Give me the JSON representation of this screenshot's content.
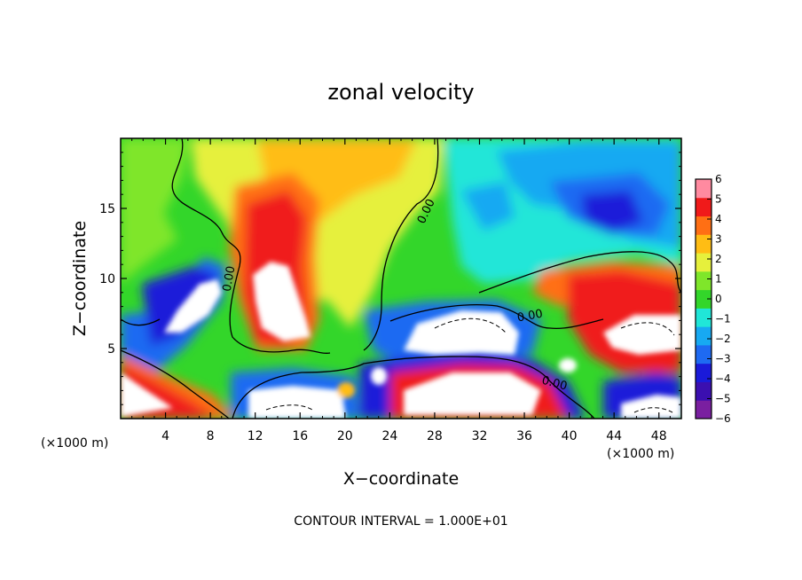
{
  "chart_data": {
    "type": "heatmap",
    "title": "zonal velocity",
    "xlabel": "X−coordinate",
    "ylabel": "Z−coordinate",
    "x_unit_left": "(×1000 m)",
    "x_unit_right": "(×1000 m)",
    "xlim": [
      0,
      50
    ],
    "ylim": [
      0,
      20
    ],
    "x_ticks": [
      4,
      8,
      12,
      16,
      20,
      24,
      28,
      32,
      36,
      40,
      44,
      48
    ],
    "y_ticks": [
      5,
      10,
      15
    ],
    "colorbar": {
      "min": -6,
      "max": 6,
      "ticks": [
        "6",
        "5",
        "4",
        "3",
        "2",
        "1",
        "0",
        "−1",
        "−2",
        "−3",
        "−4",
        "−5",
        "−6"
      ],
      "colors": [
        "#7a1fa0",
        "#3b0fb0",
        "#1a1ad9",
        "#1e6af2",
        "#17a9f2",
        "#20e6d8",
        "#33d62a",
        "#7fe62a",
        "#e6f03c",
        "#ffbd14",
        "#ff6f14",
        "#f01a1a",
        "#ff8aa0"
      ]
    },
    "contour_labels": [
      "0.00",
      "0.00",
      "0.00",
      "0.00"
    ],
    "footer": "CONTOUR INTERVAL = 1.000E+01"
  }
}
